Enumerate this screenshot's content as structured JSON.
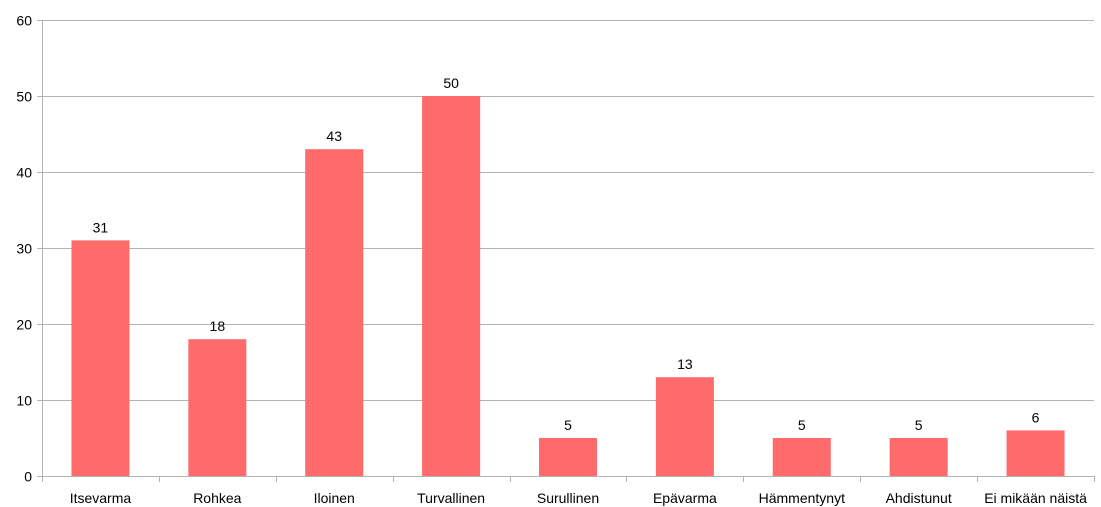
{
  "chart_data": {
    "type": "bar",
    "categories": [
      "Itsevarma",
      "Rohkea",
      "Iloinen",
      "Turvallinen",
      "Surullinen",
      "Epävarma",
      "Hämmentynyt",
      "Ahdistunut",
      "Ei mikään näistä"
    ],
    "values": [
      31,
      18,
      43,
      50,
      5,
      13,
      5,
      5,
      6
    ],
    "ylim": [
      0,
      60
    ],
    "yticks": [
      0,
      10,
      20,
      30,
      40,
      50,
      60
    ],
    "grid": true,
    "legend": "none",
    "bar_color": "#ff6b6b",
    "grid_color": "#b3b3b3"
  }
}
